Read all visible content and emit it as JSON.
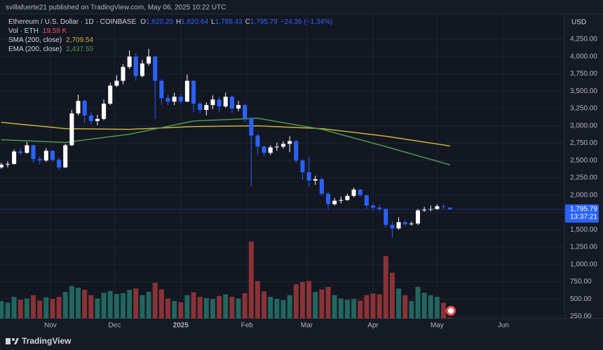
{
  "header": {
    "publisher": "svillafuerte21 published on TradingView.com, May 06, 2025 10:22 UTC",
    "brand": "TradingView"
  },
  "chart_data": {
    "type": "candlestick",
    "legend": {
      "symbol": "Ethereum / U.S. Dollar · 1D · COINBASE",
      "ohlc": [
        {
          "key": "O",
          "value": "1,820.20"
        },
        {
          "key": "H",
          "value": "1,820.64"
        },
        {
          "key": "L",
          "value": "1,788.43"
        },
        {
          "key": "C",
          "value": "1,795.79"
        }
      ],
      "change": "−24.36 (−1.34%)",
      "volume_name": "Vol · ETH",
      "volume_value": "19.59 K"
    },
    "currency": "USD",
    "price_label": "1,795.79",
    "countdown": "13:37:21",
    "x": [
      8,
      11,
      14,
      17,
      20,
      23,
      26,
      29,
      32,
      35,
      38,
      41,
      44,
      47,
      50,
      53,
      56,
      59,
      62,
      65,
      68,
      71,
      74,
      77,
      80,
      83,
      86,
      89,
      92,
      95,
      98,
      101,
      104,
      107,
      110,
      113,
      116,
      119,
      122,
      125,
      128,
      131,
      134,
      137,
      140,
      143,
      146,
      149,
      152,
      155,
      158,
      161,
      164,
      167,
      170,
      173,
      176,
      179,
      182,
      185,
      188,
      191,
      194,
      197,
      200,
      203,
      206,
      209,
      212,
      215,
      218
    ],
    "open": [
      2400,
      2440,
      2450,
      2630,
      2610,
      2720,
      2520,
      2500,
      2640,
      2510,
      2400,
      2720,
      3180,
      3360,
      3150,
      3070,
      3100,
      3320,
      3580,
      3650,
      3850,
      4000,
      3720,
      3900,
      4000,
      3650,
      3400,
      3350,
      3420,
      3350,
      3650,
      3320,
      3230,
      3300,
      3380,
      3280,
      3420,
      3250,
      3300,
      3110,
      2860,
      2700,
      2610,
      2690,
      2700,
      2740,
      2780,
      2500,
      2330,
      2210,
      2230,
      2020,
      1870,
      1920,
      1930,
      1990,
      2080,
      2000,
      1850,
      1820,
      1800,
      1570,
      1520,
      1610,
      1580,
      1590,
      1780,
      1790,
      1800,
      1840,
      1820.2
    ],
    "high": [
      2470,
      2490,
      2660,
      2680,
      2770,
      2730,
      2560,
      2680,
      2650,
      2540,
      2740,
      3230,
      3450,
      3380,
      3200,
      3160,
      3380,
      3620,
      3730,
      3890,
      4090,
      4050,
      3950,
      4110,
      4010,
      3680,
      3450,
      3480,
      3460,
      3740,
      3660,
      3350,
      3340,
      3440,
      3420,
      3480,
      3440,
      3360,
      3320,
      3130,
      2880,
      2720,
      2720,
      2760,
      2780,
      2850,
      2800,
      2520,
      2550,
      2280,
      2260,
      2050,
      1960,
      1980,
      2020,
      2110,
      2090,
      2010,
      1880,
      1860,
      1810,
      1620,
      1680,
      1640,
      1620,
      1800,
      1830,
      1850,
      1870,
      1870,
      1820.64
    ],
    "low": [
      2380,
      2400,
      2440,
      2580,
      2600,
      2470,
      2440,
      2480,
      2480,
      2360,
      2390,
      2710,
      3150,
      3040,
      3020,
      3010,
      3080,
      3300,
      3560,
      3600,
      3820,
      3650,
      3700,
      3870,
      3100,
      3300,
      3300,
      3300,
      3320,
      3340,
      3200,
      3180,
      3150,
      3240,
      3200,
      3260,
      3180,
      3210,
      3050,
      2130,
      2580,
      2560,
      2580,
      2640,
      2670,
      2620,
      2460,
      2220,
      2120,
      2150,
      1990,
      1800,
      1850,
      1880,
      1920,
      1970,
      1980,
      1800,
      1770,
      1760,
      1530,
      1385,
      1500,
      1550,
      1560,
      1570,
      1760,
      1770,
      1790,
      1800,
      1788.43
    ],
    "close": [
      2440,
      2450,
      2630,
      2610,
      2720,
      2520,
      2500,
      2640,
      2510,
      2400,
      2720,
      3180,
      3360,
      3150,
      3070,
      3100,
      3320,
      3580,
      3650,
      3850,
      4000,
      3720,
      3900,
      4000,
      3650,
      3400,
      3350,
      3420,
      3350,
      3650,
      3320,
      3230,
      3300,
      3380,
      3280,
      3420,
      3250,
      3300,
      3110,
      2860,
      2700,
      2610,
      2690,
      2700,
      2740,
      2780,
      2500,
      2330,
      2210,
      2230,
      2020,
      1870,
      1920,
      1930,
      1990,
      2080,
      2000,
      1850,
      1820,
      1800,
      1570,
      1520,
      1610,
      1580,
      1590,
      1780,
      1790,
      1800,
      1840,
      1830,
      1795.79
    ],
    "volume": [
      420,
      380,
      520,
      450,
      480,
      560,
      430,
      510,
      470,
      520,
      640,
      780,
      740,
      690,
      560,
      480,
      620,
      660,
      590,
      610,
      690,
      720,
      560,
      640,
      860,
      700,
      480,
      420,
      390,
      560,
      630,
      520,
      490,
      470,
      540,
      580,
      520,
      480,
      610,
      1850,
      900,
      650,
      520,
      470,
      440,
      560,
      820,
      880,
      900,
      640,
      700,
      760,
      560,
      480,
      450,
      470,
      430,
      560,
      600,
      580,
      1500,
      1100,
      720,
      560,
      420,
      760,
      620,
      560,
      520,
      380,
      19.59
    ],
    "indicators": [
      {
        "name": "SMA (200, close)",
        "color": "#c9b13c",
        "value_label": "2,709.54",
        "x": [
          8,
          38,
          68,
          98,
          128,
          158,
          188,
          218
        ],
        "values": [
          3050,
          2960,
          2950,
          2990,
          3000,
          2960,
          2850,
          2709.54
        ]
      },
      {
        "name": "EMA (200, close)",
        "color": "#4e9a4f",
        "value_label": "2,437.55",
        "x": [
          8,
          38,
          68,
          98,
          128,
          158,
          188,
          218
        ],
        "values": [
          2800,
          2760,
          2880,
          3070,
          3110,
          2950,
          2700,
          2437.55
        ]
      }
    ],
    "up_color": "#ffffff",
    "down_color": "#2962ff",
    "xlim": [
      7.4,
      271.6
    ],
    "xticks": [
      {
        "value": 31,
        "label": "Nov"
      },
      {
        "value": 61,
        "label": "Dec"
      },
      {
        "value": 92,
        "label": "2025"
      },
      {
        "value": 123,
        "label": "Feb"
      },
      {
        "value": 151,
        "label": "Mar"
      },
      {
        "value": 182,
        "label": "Apr"
      },
      {
        "value": 212,
        "label": "May"
      },
      {
        "value": 243,
        "label": "Jun"
      }
    ],
    "ylim": [
      220,
      4614
    ],
    "yticks": [
      {
        "value": 250,
        "label": "250.00"
      },
      {
        "value": 500,
        "label": "500.00"
      },
      {
        "value": 750,
        "label": "750.00"
      },
      {
        "value": 1000,
        "label": "1,000.00"
      },
      {
        "value": 1250,
        "label": "1,250.00"
      },
      {
        "value": 1500,
        "label": "1,500.00"
      },
      {
        "value": 1750,
        "label": "1,750.00"
      },
      {
        "value": 2000,
        "label": "2,000.00"
      },
      {
        "value": 2250,
        "label": "2,250.00"
      },
      {
        "value": 2500,
        "label": "2,500.00"
      },
      {
        "value": 2750,
        "label": "2,750.00"
      },
      {
        "value": 3000,
        "label": "3,000.00"
      },
      {
        "value": 3250,
        "label": "3,250.00"
      },
      {
        "value": 3500,
        "label": "3,500.00"
      },
      {
        "value": 3750,
        "label": "3,750.00"
      },
      {
        "value": 4000,
        "label": "4,000.00"
      },
      {
        "value": 4250,
        "label": "4,250.00"
      }
    ],
    "grid": true
  }
}
